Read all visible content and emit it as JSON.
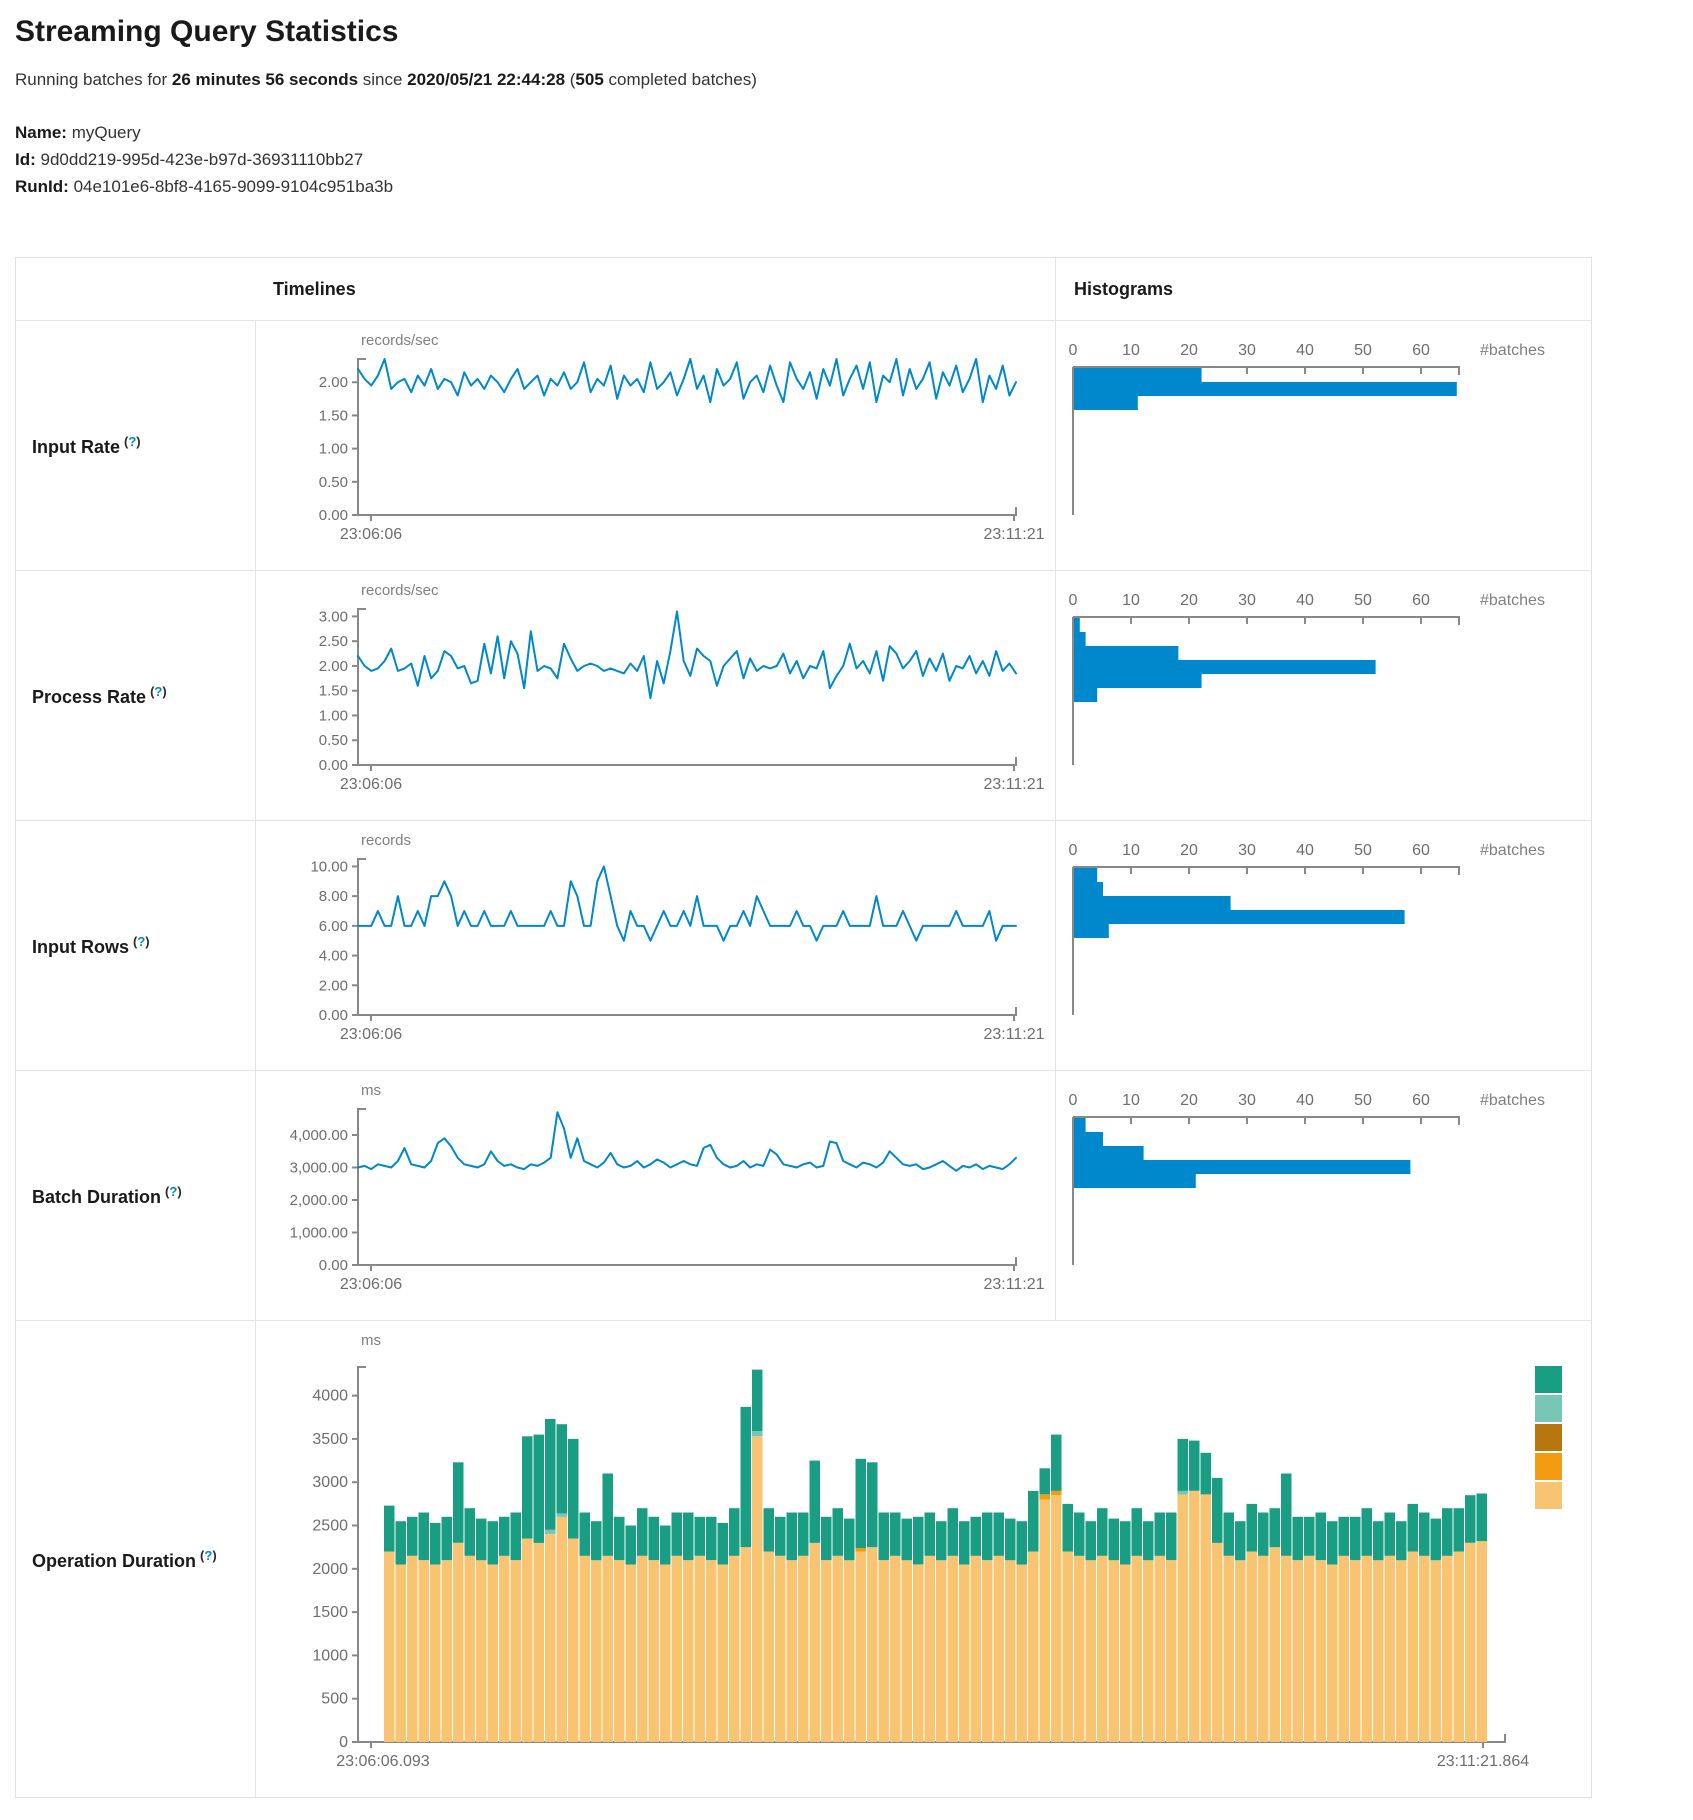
{
  "header": {
    "title": "Streaming Query Statistics",
    "subtitle": {
      "prefix": "Running batches for ",
      "duration": "26 minutes 56 seconds",
      "mid": " since ",
      "start_time": "2020/05/21 22:44:28",
      "paren_open": " (",
      "completed_count": "505",
      "suffix": " completed batches)"
    },
    "meta": [
      {
        "label": "Name:",
        "value": "myQuery"
      },
      {
        "label": "Id:",
        "value": "9d0dd219-995d-423e-b97d-36931110bb27"
      },
      {
        "label": "RunId:",
        "value": "04e101e6-8bf8-4165-9099-9104c951ba3b"
      }
    ]
  },
  "help": {
    "open": "(",
    "q": "?",
    "close": ")"
  },
  "table": {
    "headers": {
      "timelines": "Timelines",
      "histograms": "Histograms"
    },
    "rows": [
      {
        "label": "Input Rate"
      },
      {
        "label": "Process Rate"
      },
      {
        "label": "Input Rows"
      },
      {
        "label": "Batch Duration"
      },
      {
        "label": "Operation Duration"
      }
    ]
  },
  "colors": {
    "line_blue": "#0088cc",
    "axis_gray": "#888888",
    "tick_text": "#757575",
    "teal": "#1a9e83",
    "light_teal": "#77c6b6",
    "dark_gold": "#b8770e",
    "orange": "#f39c12",
    "tan": "#f8c471"
  },
  "chart_data": [
    {
      "id": "input-rate",
      "timeline": {
        "type": "line",
        "unit": "records/sec",
        "ytick_labels": [
          "2.00",
          "1.50",
          "1.00",
          "0.50",
          "0.00"
        ],
        "ytick_values": [
          2,
          1.5,
          1,
          0.5,
          0
        ],
        "ylim": [
          0,
          2.35
        ],
        "x_start_label": "23:06:06",
        "x_end_label": "23:11:21",
        "values": [
          2.2,
          2.05,
          1.95,
          2.1,
          2.35,
          1.9,
          2.0,
          2.05,
          1.85,
          2.1,
          1.95,
          2.2,
          1.9,
          2.05,
          2.0,
          1.8,
          2.15,
          1.95,
          2.05,
          1.9,
          2.1,
          2.0,
          1.85,
          2.05,
          2.2,
          1.9,
          2.0,
          2.1,
          1.8,
          2.05,
          1.95,
          2.15,
          1.9,
          2.0,
          2.3,
          1.85,
          2.05,
          1.95,
          2.25,
          1.75,
          2.1,
          1.95,
          2.05,
          1.85,
          2.3,
          1.9,
          2.0,
          2.15,
          1.8,
          2.05,
          2.35,
          1.9,
          2.1,
          1.7,
          2.2,
          1.95,
          2.05,
          2.3,
          1.75,
          2.0,
          2.1,
          1.85,
          2.25,
          1.95,
          1.7,
          2.3,
          2.05,
          1.9,
          2.15,
          1.75,
          2.2,
          1.95,
          2.35,
          1.8,
          2.05,
          2.25,
          1.9,
          2.3,
          1.7,
          2.1,
          2.0,
          2.35,
          1.8,
          2.2,
          1.9,
          2.05,
          2.3,
          1.75,
          2.15,
          1.95,
          2.25,
          1.85,
          2.05,
          2.35,
          1.7,
          2.1,
          1.9,
          2.25,
          1.8,
          2.0
        ]
      },
      "histogram": {
        "type": "bar",
        "orientation": "horizontal",
        "xlabel": "#batches",
        "xtick_labels": [
          "0",
          "10",
          "20",
          "30",
          "40",
          "50",
          "60"
        ],
        "xtick_values": [
          0,
          10,
          20,
          30,
          40,
          50,
          60
        ],
        "xlim": [
          0,
          66.5
        ],
        "values": [
          22,
          66,
          11
        ]
      }
    },
    {
      "id": "process-rate",
      "timeline": {
        "type": "line",
        "unit": "records/sec",
        "ytick_labels": [
          "3.00",
          "2.50",
          "2.00",
          "1.50",
          "1.00",
          "0.50",
          "0.00"
        ],
        "ytick_values": [
          3,
          2.5,
          2,
          1.5,
          1,
          0.5,
          0
        ],
        "ylim": [
          0,
          3.15
        ],
        "x_start_label": "23:06:06",
        "x_end_label": "23:11:21",
        "values": [
          2.2,
          2.0,
          1.9,
          1.95,
          2.1,
          2.35,
          1.9,
          1.95,
          2.05,
          1.6,
          2.2,
          1.75,
          1.9,
          2.3,
          2.2,
          1.95,
          2.0,
          1.65,
          1.7,
          2.45,
          1.85,
          2.6,
          1.75,
          2.5,
          2.25,
          1.55,
          2.7,
          1.9,
          2.0,
          1.95,
          1.75,
          2.45,
          2.15,
          1.9,
          2.0,
          2.05,
          2.0,
          1.9,
          1.95,
          1.9,
          1.85,
          2.05,
          1.9,
          2.2,
          1.35,
          2.1,
          1.65,
          2.3,
          3.1,
          2.1,
          1.8,
          2.35,
          2.2,
          2.1,
          1.6,
          2.0,
          2.15,
          2.3,
          1.75,
          2.15,
          1.9,
          2.0,
          1.95,
          2.0,
          2.25,
          1.85,
          2.1,
          1.75,
          2.0,
          1.95,
          2.3,
          1.55,
          1.8,
          2.0,
          2.45,
          1.95,
          2.1,
          1.85,
          2.3,
          1.7,
          2.4,
          2.25,
          1.95,
          2.1,
          2.3,
          1.8,
          2.15,
          1.9,
          2.25,
          1.7,
          2.0,
          1.95,
          2.2,
          1.85,
          2.1,
          1.8,
          2.3,
          1.9,
          2.05,
          1.85
        ]
      },
      "histogram": {
        "type": "bar",
        "orientation": "horizontal",
        "xlabel": "#batches",
        "xtick_labels": [
          "0",
          "10",
          "20",
          "30",
          "40",
          "50",
          "60"
        ],
        "xtick_values": [
          0,
          10,
          20,
          30,
          40,
          50,
          60
        ],
        "xlim": [
          0,
          66.5
        ],
        "values": [
          1,
          2,
          18,
          52,
          22,
          4
        ]
      }
    },
    {
      "id": "input-rows",
      "timeline": {
        "type": "line",
        "unit": "records",
        "ytick_labels": [
          "10.00",
          "8.00",
          "6.00",
          "4.00",
          "2.00",
          "0.00"
        ],
        "ytick_values": [
          10,
          8,
          6,
          4,
          2,
          0
        ],
        "ylim": [
          0,
          10.5
        ],
        "x_start_label": "23:06:06",
        "x_end_label": "23:11:21",
        "values": [
          6,
          6,
          6,
          7,
          6,
          6,
          8,
          6,
          6,
          7,
          6,
          8,
          8,
          9,
          8,
          6,
          7,
          6,
          6,
          7,
          6,
          6,
          6,
          7,
          6,
          6,
          6,
          6,
          6,
          7,
          6,
          6,
          9,
          8,
          6,
          6,
          9,
          10,
          8,
          6,
          5,
          7,
          6,
          6,
          5,
          6,
          7,
          6,
          6,
          7,
          6,
          8,
          6,
          6,
          6,
          5,
          6,
          6,
          7,
          6,
          8,
          7,
          6,
          6,
          6,
          6,
          7,
          6,
          6,
          5,
          6,
          6,
          6,
          7,
          6,
          6,
          6,
          6,
          8,
          6,
          6,
          6,
          7,
          6,
          5,
          6,
          6,
          6,
          6,
          6,
          7,
          6,
          6,
          6,
          6,
          7,
          5,
          6,
          6,
          6
        ]
      },
      "histogram": {
        "type": "bar",
        "orientation": "horizontal",
        "xlabel": "#batches",
        "xtick_labels": [
          "0",
          "10",
          "20",
          "30",
          "40",
          "50",
          "60"
        ],
        "xtick_values": [
          0,
          10,
          20,
          30,
          40,
          50,
          60
        ],
        "xlim": [
          0,
          66.5
        ],
        "values": [
          4,
          5,
          27,
          57,
          6
        ]
      }
    },
    {
      "id": "batch-duration",
      "timeline": {
        "type": "line",
        "unit": "ms",
        "ytick_labels": [
          "4,000.00",
          "3,000.00",
          "2,000.00",
          "1,000.00",
          "0.00"
        ],
        "ytick_values": [
          4000,
          3000,
          2000,
          1000,
          0
        ],
        "ylim": [
          0,
          4800
        ],
        "x_start_label": "23:06:06",
        "x_end_label": "23:11:21",
        "values": [
          3000,
          3050,
          2950,
          3100,
          3050,
          3000,
          3200,
          3600,
          3100,
          3050,
          3000,
          3200,
          3750,
          3900,
          3650,
          3300,
          3100,
          3050,
          3000,
          3100,
          3500,
          3200,
          3050,
          3100,
          3000,
          2950,
          3100,
          3050,
          3150,
          3300,
          4700,
          4200,
          3300,
          3900,
          3200,
          3100,
          3000,
          3150,
          3450,
          3100,
          3000,
          3050,
          3200,
          3000,
          3100,
          3250,
          3150,
          3000,
          3100,
          3200,
          3100,
          3050,
          3600,
          3700,
          3300,
          3100,
          3000,
          3050,
          3200,
          3000,
          3100,
          3050,
          3550,
          3400,
          3100,
          3050,
          3000,
          3100,
          3150,
          3000,
          3050,
          3800,
          3750,
          3200,
          3100,
          3000,
          3150,
          3100,
          3000,
          3150,
          3500,
          3300,
          3100,
          3050,
          3100,
          2950,
          3000,
          3100,
          3200,
          3050,
          2900,
          3050,
          3000,
          3100,
          2950,
          3050,
          3000,
          2950,
          3100,
          3300
        ]
      },
      "histogram": {
        "type": "bar",
        "orientation": "horizontal",
        "xlabel": "#batches",
        "xtick_labels": [
          "0",
          "10",
          "20",
          "30",
          "40",
          "50",
          "60"
        ],
        "xtick_values": [
          0,
          10,
          20,
          30,
          40,
          50,
          60
        ],
        "xlim": [
          0,
          66.5
        ],
        "values": [
          2,
          5,
          12,
          58,
          21
        ]
      }
    },
    {
      "id": "operation-duration",
      "timeline": {
        "type": "stacked-bar",
        "unit": "ms",
        "ytick_labels": [
          "4000",
          "3500",
          "3000",
          "2500",
          "2000",
          "1500",
          "1000",
          "500",
          "0"
        ],
        "ytick_values": [
          4000,
          3500,
          3000,
          2500,
          2000,
          1500,
          1000,
          500,
          0
        ],
        "ylim": [
          0,
          4330
        ],
        "x_start_label": "23:06:06.093",
        "x_end_label": "23:11:21.864",
        "series": [
          {
            "name": "bottom-stack",
            "color_key": "tan",
            "values": [
              2200,
              2050,
              2150,
              2100,
              2050,
              2100,
              2300,
              2150,
              2100,
              2050,
              2150,
              2100,
              2350,
              2300,
              2400,
              2600,
              2350,
              2150,
              2100,
              2150,
              2100,
              2050,
              2150,
              2100,
              2050,
              2150,
              2100,
              2150,
              2100,
              2050,
              2150,
              2250,
              3530,
              2200,
              2150,
              2100,
              2150,
              2300,
              2100,
              2150,
              2100,
              2200,
              2250,
              2100,
              2150,
              2100,
              2050,
              2150,
              2100,
              2150,
              2050,
              2150,
              2100,
              2150,
              2100,
              2050,
              2200,
              2800,
              2850,
              2200,
              2150,
              2100,
              2150,
              2100,
              2050,
              2150,
              2100,
              2150,
              2100,
              2860,
              2900,
              2860,
              2300,
              2150,
              2100,
              2200,
              2150,
              2250,
              2150,
              2100,
              2150,
              2100,
              2050,
              2150,
              2100,
              2150,
              2100,
              2150,
              2100,
              2200,
              2150,
              2100,
              2150,
              2200,
              2300,
              2320
            ]
          },
          {
            "name": "top-stack",
            "color_key": "teal",
            "values": [
              530,
              500,
              450,
              550,
              480,
              500,
              930,
              550,
              480,
              500,
              450,
              550,
              1180,
              1250,
              1280,
              1030,
              1150,
              500,
              450,
              950,
              500,
              450,
              550,
              500,
              450,
              500,
              550,
              450,
              500,
              480,
              550,
              1620,
              710,
              500,
              450,
              550,
              500,
              950,
              500,
              550,
              480,
              1030,
              980,
              550,
              500,
              480,
              550,
              500,
              450,
              550,
              500,
              450,
              550,
              500,
              480,
              500,
              700,
              300,
              650,
              550,
              500,
              450,
              550,
              480,
              500,
              550,
              450,
              500,
              550,
              600,
              580,
              480,
              750,
              500,
              450,
              550,
              500,
              450,
              950,
              500,
              450,
              550,
              500,
              450,
              500,
              550,
              450,
              500,
              450,
              550,
              500,
              480,
              550,
              500,
              550,
              550
            ]
          }
        ],
        "slivers_light_teal": [
          {
            "i": 14,
            "v": 50
          },
          {
            "i": 15,
            "v": 40
          },
          {
            "i": 32,
            "v": 60
          },
          {
            "i": 69,
            "v": 40
          }
        ],
        "slivers_orange": [
          {
            "i": 41,
            "v": 40
          },
          {
            "i": 57,
            "v": 60
          },
          {
            "i": 58,
            "v": 50
          }
        ],
        "legend_color_keys": [
          "teal",
          "light_teal",
          "dark_gold",
          "orange",
          "tan"
        ]
      }
    }
  ]
}
